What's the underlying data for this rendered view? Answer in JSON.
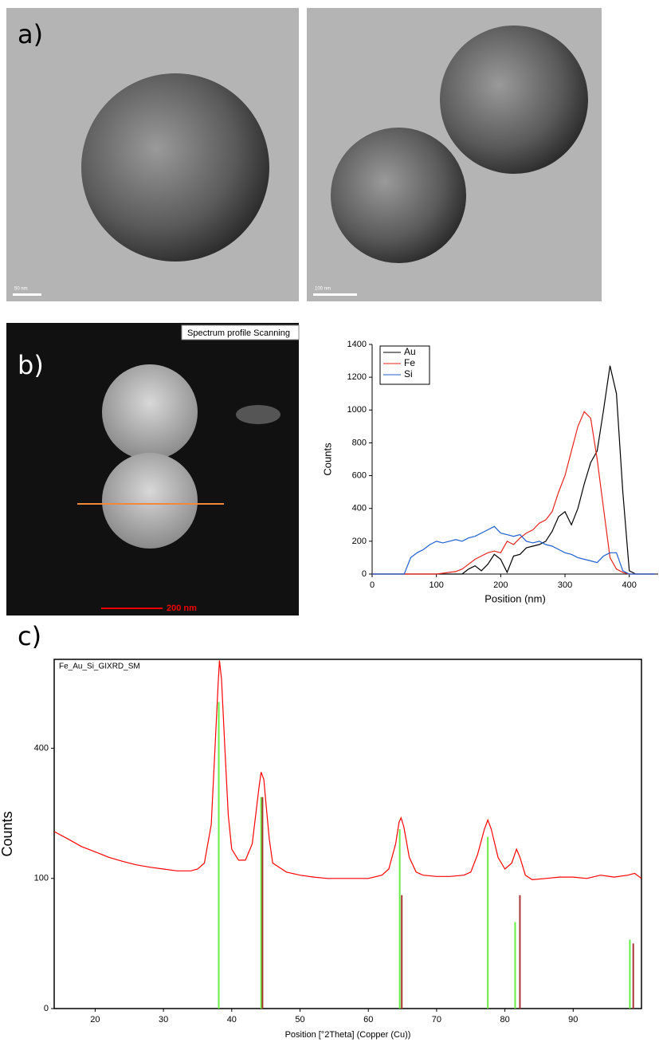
{
  "panels": {
    "a": {
      "label": "a)",
      "scale_left": "50 nm",
      "scale_right": "100 nm"
    },
    "b": {
      "label": "b)",
      "overlay": "Spectrum profile Scanning",
      "scale": "200 nm"
    },
    "c": {
      "label": "c)"
    }
  },
  "chart_data": [
    {
      "type": "line",
      "xlabel": "Position (nm)",
      "ylabel": "Counts",
      "legend": "upper left",
      "xlim": [
        0,
        445
      ],
      "xticks": [
        0,
        100,
        200,
        300,
        400
      ],
      "ylim": [
        0,
        1400
      ],
      "yticks": [
        0,
        200,
        400,
        600,
        800,
        1000,
        1200,
        1400
      ],
      "x": [
        0,
        10,
        20,
        30,
        40,
        50,
        60,
        70,
        80,
        90,
        100,
        110,
        120,
        130,
        140,
        150,
        160,
        170,
        180,
        190,
        200,
        210,
        220,
        230,
        240,
        250,
        260,
        270,
        280,
        290,
        300,
        310,
        320,
        330,
        340,
        350,
        360,
        370,
        380,
        390,
        400,
        410,
        420,
        430,
        440
      ],
      "series": [
        {
          "name": "Au",
          "color": "#000000",
          "values": [
            0,
            0,
            0,
            0,
            0,
            0,
            0,
            0,
            0,
            0,
            0,
            0,
            0,
            0,
            0,
            30,
            50,
            20,
            60,
            120,
            90,
            10,
            110,
            120,
            160,
            170,
            180,
            200,
            260,
            350,
            380,
            300,
            400,
            550,
            680,
            750,
            1000,
            1270,
            1100,
            500,
            20,
            0,
            0,
            0,
            0
          ]
        },
        {
          "name": "Fe",
          "color": "#e8231f",
          "values": [
            0,
            0,
            0,
            0,
            0,
            0,
            0,
            0,
            0,
            0,
            0,
            5,
            10,
            15,
            30,
            60,
            90,
            110,
            130,
            140,
            130,
            200,
            180,
            220,
            250,
            270,
            310,
            330,
            380,
            500,
            600,
            750,
            900,
            990,
            950,
            700,
            400,
            100,
            30,
            10,
            0,
            0,
            0,
            0,
            0
          ]
        },
        {
          "name": "Si",
          "color": "#1f5fd0",
          "values": [
            0,
            0,
            0,
            0,
            0,
            0,
            100,
            130,
            150,
            180,
            200,
            190,
            200,
            210,
            200,
            220,
            230,
            250,
            270,
            290,
            250,
            240,
            230,
            240,
            200,
            190,
            200,
            180,
            170,
            150,
            130,
            120,
            100,
            90,
            80,
            70,
            110,
            130,
            130,
            20,
            0,
            0,
            0,
            0,
            0
          ]
        }
      ]
    },
    {
      "type": "line",
      "title": "Fe_Au_Si_GIXRD_SM",
      "xlabel": "Position [°2Theta] (Copper (Cu))",
      "ylabel": "Counts",
      "yscale": "sqrt",
      "xlim": [
        14,
        100
      ],
      "xticks": [
        20,
        30,
        40,
        50,
        60,
        70,
        80,
        90
      ],
      "ylim": [
        0,
        720
      ],
      "yticks": [
        0,
        100,
        400
      ],
      "color": "#ff0000",
      "x": [
        14,
        16,
        18,
        20,
        22,
        24,
        26,
        28,
        30,
        32,
        34,
        35,
        36,
        37,
        37.5,
        38,
        38.2,
        38.5,
        39,
        39.5,
        40,
        41,
        42,
        43,
        43.5,
        44,
        44.3,
        44.7,
        45,
        45.5,
        46,
        48,
        50,
        52,
        54,
        56,
        58,
        60,
        62,
        63,
        64,
        64.5,
        64.8,
        65.2,
        66,
        67,
        68,
        70,
        72,
        74,
        75,
        76,
        77,
        77.5,
        78,
        79,
        80,
        81,
        81.7,
        82.2,
        83,
        84,
        86,
        88,
        90,
        92,
        94,
        96,
        98,
        99,
        100
      ],
      "values": [
        185,
        170,
        155,
        145,
        135,
        128,
        122,
        118,
        115,
        112,
        112,
        115,
        125,
        200,
        380,
        620,
        715,
        640,
        400,
        220,
        150,
        130,
        130,
        160,
        220,
        290,
        330,
        310,
        250,
        170,
        125,
        110,
        105,
        102,
        100,
        100,
        100,
        100,
        105,
        115,
        160,
        205,
        215,
        195,
        135,
        110,
        105,
        103,
        103,
        105,
        110,
        140,
        190,
        210,
        190,
        135,
        115,
        125,
        150,
        135,
        105,
        98,
        100,
        102,
        102,
        100,
        105,
        102,
        105,
        108,
        100
      ],
      "references": [
        {
          "color": "#66ee44",
          "x": [
            38.1,
            44.3,
            64.6,
            77.5,
            81.5,
            98.3
          ],
          "values": [
            555,
            264,
            190,
            174,
            44,
            28
          ]
        },
        {
          "color": "#aa3333",
          "x": [
            44.5,
            64.9,
            82.2,
            98.8
          ],
          "values": [
            264,
            76,
            76,
            25
          ]
        }
      ]
    }
  ]
}
